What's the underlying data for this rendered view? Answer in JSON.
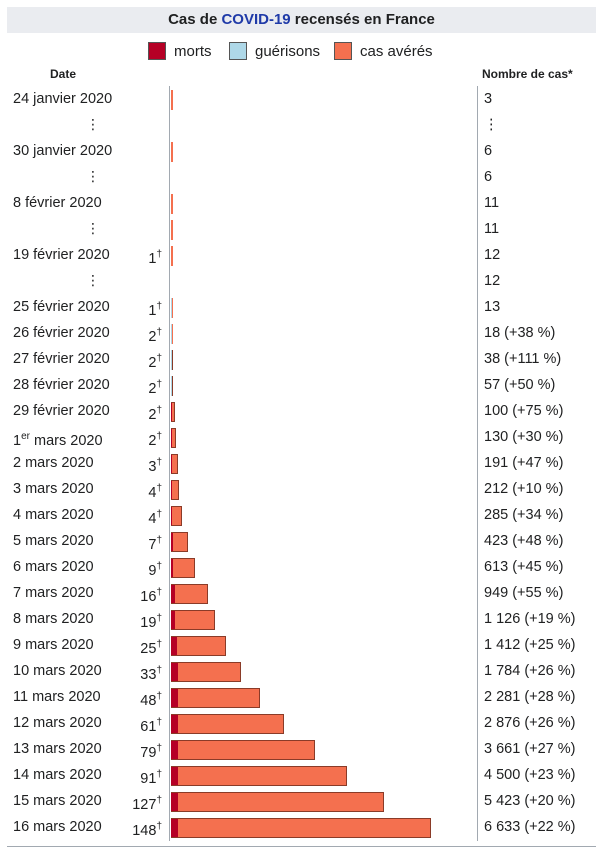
{
  "title": {
    "prefix": "Cas de ",
    "link": "COVID-19",
    "suffix": " recensés en France"
  },
  "legend": [
    {
      "label": "morts",
      "color": "#b50025"
    },
    {
      "label": "guérisons",
      "color": "#aed8e8"
    },
    {
      "label": "cas avérés",
      "color": "#f4704f"
    }
  ],
  "headers": {
    "date": "Date",
    "cases": "Nombre de cas*"
  },
  "chart_data": {
    "type": "bar",
    "orientation": "horizontal",
    "series_colors": {
      "deaths": "#b50025",
      "recoveries": "#aed8e8",
      "cases": "#f4704f"
    },
    "rows": [
      {
        "date": "24 janvier 2020",
        "deaths": "",
        "cases_label": "3",
        "cases": 3,
        "dead": 0,
        "recovered": 0
      },
      {
        "date": "⋮",
        "gap": true,
        "deaths": "",
        "cases_label": "⋮",
        "cases": null,
        "dead": 0,
        "recovered": 0
      },
      {
        "date": "30 janvier 2020",
        "deaths": "",
        "cases_label": "6",
        "cases": 6,
        "dead": 0,
        "recovered": 0
      },
      {
        "date": "⋮",
        "gap": true,
        "deaths": "",
        "cases_label": "6",
        "cases": null,
        "dead": 0,
        "recovered": 0
      },
      {
        "date": "8 février 2020",
        "deaths": "",
        "cases_label": "11",
        "cases": 11,
        "dead": 0,
        "recovered": 0
      },
      {
        "date": "⋮",
        "gap": true,
        "deaths": "",
        "cases_label": "11",
        "cases": 11,
        "dead": 0,
        "recovered": 0
      },
      {
        "date": "19 février 2020",
        "deaths": "1",
        "cases_label": "12",
        "cases": 12,
        "dead": 1,
        "recovered": 0
      },
      {
        "date": "⋮",
        "gap": true,
        "deaths": "",
        "cases_label": "12",
        "cases": null,
        "dead": 0,
        "recovered": 0
      },
      {
        "date": "25 février 2020",
        "deaths": "1",
        "cases_label": "13",
        "cases": 13,
        "dead": 1,
        "recovered": 12
      },
      {
        "date": "26 février 2020",
        "deaths": "2",
        "cases_label": "18 (+38 %)",
        "cases": 18,
        "dead": 2,
        "recovered": 12
      },
      {
        "date": "27 février 2020",
        "deaths": "2",
        "cases_label": "38 (+111 %)",
        "cases": 38,
        "dead": 2,
        "recovered": 12
      },
      {
        "date": "28 février 2020",
        "deaths": "2",
        "cases_label": "57 (+50 %)",
        "cases": 57,
        "dead": 2,
        "recovered": 12
      },
      {
        "date": "29 février 2020",
        "deaths": "2",
        "cases_label": "100 (+75 %)",
        "cases": 100,
        "dead": 2,
        "recovered": 12
      },
      {
        "date": "1er mars 2020",
        "sup": "er",
        "date_pre": "1",
        "date_post": " mars 2020",
        "deaths": "2",
        "cases_label": "130 (+30 %)",
        "cases": 130,
        "dead": 2,
        "recovered": 12
      },
      {
        "date": "2 mars 2020",
        "deaths": "3",
        "cases_label": "191 (+47 %)",
        "cases": 191,
        "dead": 3,
        "recovered": 12
      },
      {
        "date": "3 mars 2020",
        "deaths": "4",
        "cases_label": "212 (+10 %)",
        "cases": 212,
        "dead": 4,
        "recovered": 12
      },
      {
        "date": "4 mars 2020",
        "deaths": "4",
        "cases_label": "285 (+34 %)",
        "cases": 285,
        "dead": 4,
        "recovered": 12
      },
      {
        "date": "5 mars 2020",
        "deaths": "7",
        "cases_label": "423 (+48 %)",
        "cases": 423,
        "dead": 7,
        "recovered": 12
      },
      {
        "date": "6 mars 2020",
        "deaths": "9",
        "cases_label": "613 (+45 %)",
        "cases": 613,
        "dead": 9,
        "recovered": 12
      },
      {
        "date": "7 mars 2020",
        "deaths": "16",
        "cases_label": "949 (+55 %)",
        "cases": 949,
        "dead": 16,
        "recovered": 12
      },
      {
        "date": "8 mars 2020",
        "deaths": "19",
        "cases_label": "1 126 (+19 %)",
        "cases": 1126,
        "dead": 19,
        "recovered": 12
      },
      {
        "date": "9 mars 2020",
        "deaths": "25",
        "cases_label": "1 412 (+25 %)",
        "cases": 1412,
        "dead": 25,
        "recovered": 12
      },
      {
        "date": "10 mars 2020",
        "deaths": "33",
        "cases_label": "1 784 (+26 %)",
        "cases": 1784,
        "dead": 33,
        "recovered": 12
      },
      {
        "date": "11 mars 2020",
        "deaths": "48",
        "cases_label": "2 281 (+28 %)",
        "cases": 2281,
        "dead": 48,
        "recovered": 12
      },
      {
        "date": "12 mars 2020",
        "deaths": "61",
        "cases_label": "2 876 (+26 %)",
        "cases": 2876,
        "dead": 61,
        "recovered": 12
      },
      {
        "date": "13 mars 2020",
        "deaths": "79",
        "cases_label": "3 661 (+27 %)",
        "cases": 3661,
        "dead": 79,
        "recovered": 12
      },
      {
        "date": "14 mars 2020",
        "deaths": "91",
        "cases_label": "4 500 (+23 %)",
        "cases": 4500,
        "dead": 91,
        "recovered": 12
      },
      {
        "date": "15 mars 2020",
        "deaths": "127",
        "cases_label": "5 423 (+20 %)",
        "cases": 5423,
        "dead": 127,
        "recovered": 12
      },
      {
        "date": "16 mars 2020",
        "deaths": "148",
        "cases_label": "6 633 (+22 %)",
        "cases": 6633,
        "dead": 148,
        "recovered": 12
      }
    ],
    "death_marker": "†",
    "xlim": [
      0,
      6633
    ]
  }
}
